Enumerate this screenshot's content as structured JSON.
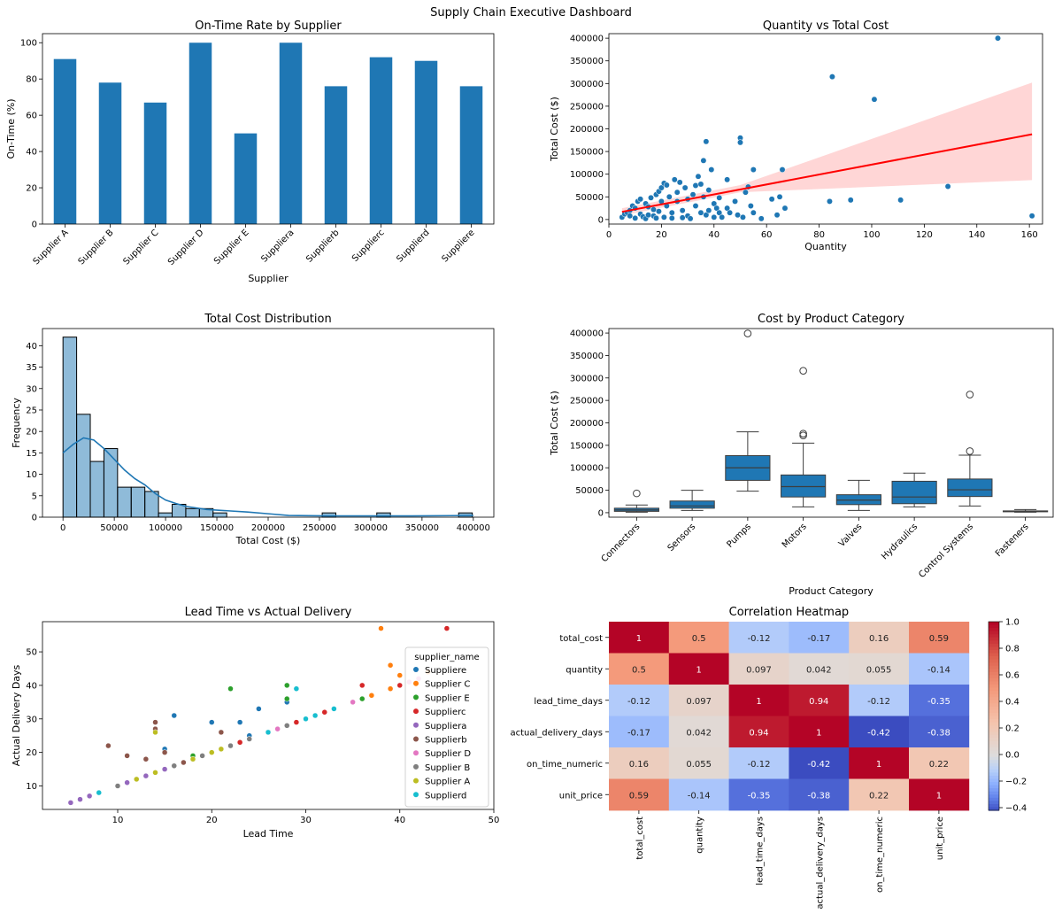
{
  "page": {
    "title": "Supply Chain Executive Dashboard"
  },
  "chart_data": [
    {
      "id": "ontime",
      "type": "bar",
      "title": "On-Time Rate by Supplier",
      "xlabel": "Supplier",
      "ylabel": "On-Time (%)",
      "categories": [
        "Supplier A",
        "Supplier B",
        "Supplier C",
        "Supplier D",
        "Supplier E",
        "Suppliera",
        "Supplierb",
        "Supplierc",
        "Supplierd",
        "Suppliere"
      ],
      "values": [
        91,
        78,
        67,
        100,
        50,
        100,
        76,
        92,
        90,
        76
      ],
      "ylim": [
        0,
        105
      ],
      "yticks": [
        0,
        20,
        40,
        60,
        80,
        100
      ],
      "color": "#1f77b4"
    },
    {
      "id": "qtycost",
      "type": "scatter",
      "title": "Quantity vs Total Cost",
      "xlabel": "Quantity",
      "ylabel": "Total Cost ($)",
      "xlim": [
        0,
        165
      ],
      "ylim": [
        -10000,
        410000
      ],
      "xticks": [
        0,
        20,
        40,
        60,
        80,
        100,
        120,
        140,
        160
      ],
      "yticks": [
        0,
        50000,
        100000,
        150000,
        200000,
        250000,
        300000,
        350000,
        400000
      ],
      "points": [
        [
          5,
          5000
        ],
        [
          6,
          12000
        ],
        [
          7,
          15000
        ],
        [
          8,
          20000
        ],
        [
          8,
          8000
        ],
        [
          9,
          30000
        ],
        [
          10,
          25000
        ],
        [
          10,
          3000
        ],
        [
          11,
          40000
        ],
        [
          12,
          45000
        ],
        [
          12,
          12000
        ],
        [
          13,
          6000
        ],
        [
          14,
          2000
        ],
        [
          14,
          35000
        ],
        [
          15,
          28000
        ],
        [
          15,
          10000
        ],
        [
          16,
          48000
        ],
        [
          17,
          8000
        ],
        [
          17,
          22000
        ],
        [
          18,
          55000
        ],
        [
          18,
          3000
        ],
        [
          19,
          62000
        ],
        [
          19,
          18000
        ],
        [
          20,
          70000
        ],
        [
          20,
          40000
        ],
        [
          21,
          80000
        ],
        [
          21,
          5000
        ],
        [
          22,
          30000
        ],
        [
          22,
          76000
        ],
        [
          23,
          50000
        ],
        [
          24,
          15000
        ],
        [
          24,
          3000
        ],
        [
          25,
          88000
        ],
        [
          26,
          60000
        ],
        [
          26,
          40000
        ],
        [
          27,
          82000
        ],
        [
          28,
          20000
        ],
        [
          28,
          4000
        ],
        [
          29,
          70000
        ],
        [
          30,
          45000
        ],
        [
          30,
          8000
        ],
        [
          31,
          2000
        ],
        [
          32,
          55000
        ],
        [
          33,
          75000
        ],
        [
          33,
          30000
        ],
        [
          34,
          95000
        ],
        [
          35,
          78000
        ],
        [
          35,
          15000
        ],
        [
          36,
          130000
        ],
        [
          36,
          50000
        ],
        [
          37,
          10000
        ],
        [
          37,
          172000
        ],
        [
          38,
          20000
        ],
        [
          38,
          65000
        ],
        [
          39,
          110000
        ],
        [
          40,
          35000
        ],
        [
          40,
          5000
        ],
        [
          41,
          25000
        ],
        [
          42,
          48000
        ],
        [
          42,
          15000
        ],
        [
          43,
          5000
        ],
        [
          45,
          88000
        ],
        [
          45,
          25000
        ],
        [
          46,
          15000
        ],
        [
          48,
          40000
        ],
        [
          49,
          10000
        ],
        [
          50,
          180000
        ],
        [
          50,
          170000
        ],
        [
          51,
          5000
        ],
        [
          52,
          60000
        ],
        [
          53,
          72000
        ],
        [
          54,
          30000
        ],
        [
          55,
          110000
        ],
        [
          55,
          15000
        ],
        [
          58,
          2000
        ],
        [
          62,
          45000
        ],
        [
          64,
          10000
        ],
        [
          65,
          50000
        ],
        [
          66,
          110000
        ],
        [
          67,
          25000
        ],
        [
          84,
          40000
        ],
        [
          85,
          315000
        ],
        [
          92,
          43000
        ],
        [
          101,
          265000
        ],
        [
          111,
          43000
        ],
        [
          129,
          73000
        ],
        [
          148,
          400000
        ],
        [
          161,
          8000
        ]
      ],
      "regression": {
        "x0": 5,
        "y0": 17000,
        "x1": 161,
        "y1": 188000,
        "ci_lower_end": 87000,
        "ci_upper_end": 302000
      },
      "color": "#1f77b4",
      "line_color": "#ff0000"
    },
    {
      "id": "costdist",
      "type": "bar",
      "subtype": "histogram",
      "title": "Total Cost Distribution",
      "xlabel": "Total Cost ($)",
      "ylabel": "Frequency",
      "bin_start": 0,
      "bin_width": 13300,
      "counts": [
        42,
        24,
        13,
        16,
        7,
        7,
        6,
        1,
        3,
        2,
        2,
        1,
        0,
        0,
        0,
        0,
        0,
        0,
        0,
        1,
        0,
        0,
        0,
        1,
        0,
        0,
        0,
        0,
        0,
        1
      ],
      "xlim": [
        -20000,
        420000
      ],
      "ylim": [
        0,
        44
      ],
      "xticks": [
        0,
        50000,
        100000,
        150000,
        200000,
        250000,
        300000,
        350000,
        400000
      ],
      "yticks": [
        0,
        5,
        10,
        15,
        20,
        25,
        30,
        35,
        40
      ],
      "kde": [
        [
          0,
          15
        ],
        [
          10000,
          17
        ],
        [
          20000,
          18.5
        ],
        [
          30000,
          18
        ],
        [
          40000,
          16
        ],
        [
          50000,
          13.5
        ],
        [
          60000,
          11
        ],
        [
          70000,
          9
        ],
        [
          80000,
          7.5
        ],
        [
          90000,
          5.5
        ],
        [
          100000,
          4
        ],
        [
          110000,
          3.2
        ],
        [
          120000,
          2.5
        ],
        [
          140000,
          1.8
        ],
        [
          160000,
          1.5
        ],
        [
          180000,
          1.2
        ],
        [
          200000,
          0.8
        ],
        [
          220000,
          0.4
        ],
        [
          260000,
          0.3
        ],
        [
          300000,
          0.3
        ],
        [
          340000,
          0.3
        ],
        [
          400000,
          0.4
        ]
      ],
      "color": "#1f77b4"
    },
    {
      "id": "catbox",
      "type": "boxplot",
      "title": "Cost by Product Category",
      "xlabel": "Product Category",
      "ylabel": "Total Cost ($)",
      "ylim": [
        -10000,
        410000
      ],
      "yticks": [
        0,
        50000,
        100000,
        150000,
        200000,
        250000,
        300000,
        350000,
        400000
      ],
      "categories": [
        "Connectors",
        "Sensors",
        "Pumps",
        "Motors",
        "Valves",
        "Hydraulics",
        "Control Systems",
        "Fasteners"
      ],
      "boxes": [
        {
          "min": 1000,
          "q1": 3000,
          "median": 6000,
          "q3": 10000,
          "max": 17000,
          "outliers": [
            43000
          ]
        },
        {
          "min": 5000,
          "q1": 10000,
          "median": 15000,
          "q3": 26000,
          "max": 50000,
          "outliers": []
        },
        {
          "min": 48000,
          "q1": 72000,
          "median": 100000,
          "q3": 127000,
          "max": 180000,
          "outliers": [
            399000
          ]
        },
        {
          "min": 13000,
          "q1": 35000,
          "median": 58000,
          "q3": 84000,
          "max": 155000,
          "outliers": [
            172000,
            176000,
            316000
          ]
        },
        {
          "min": 5000,
          "q1": 18000,
          "median": 28000,
          "q3": 40000,
          "max": 72000,
          "outliers": []
        },
        {
          "min": 13000,
          "q1": 20000,
          "median": 35000,
          "q3": 70000,
          "max": 88000,
          "outliers": []
        },
        {
          "min": 15000,
          "q1": 36000,
          "median": 51000,
          "q3": 75000,
          "max": 128000,
          "outliers": [
            137000,
            263000
          ]
        },
        {
          "min": 1000,
          "q1": 2000,
          "median": 3000,
          "q3": 4000,
          "max": 7000,
          "outliers": []
        }
      ],
      "color": "#1f77b4"
    },
    {
      "id": "leadtime",
      "type": "scatter",
      "title": "Lead Time vs Actual Delivery",
      "xlabel": "Lead Time",
      "ylabel": "Actual Delivery Days",
      "xlim": [
        2,
        50
      ],
      "ylim": [
        3,
        59
      ],
      "xticks": [
        10,
        20,
        30,
        40,
        50
      ],
      "yticks": [
        10,
        20,
        30,
        40,
        50
      ],
      "legend_title": "supplier_name",
      "legend_position": "upper right",
      "series": [
        {
          "name": "Suppliere",
          "color": "#1f77b4",
          "points": [
            [
              15,
              21
            ],
            [
              16,
              31
            ],
            [
              20,
              29
            ],
            [
              23,
              29
            ],
            [
              25,
              33
            ],
            [
              28,
              35
            ],
            [
              24,
              25
            ]
          ]
        },
        {
          "name": "Supplier C",
          "color": "#ff7f0e",
          "points": [
            [
              38,
              57
            ],
            [
              39,
              46
            ],
            [
              39,
              39
            ],
            [
              37,
              37
            ],
            [
              40,
              43
            ],
            [
              43,
              44
            ]
          ]
        },
        {
          "name": "Supplier E",
          "color": "#2ca02c",
          "points": [
            [
              22,
              39
            ],
            [
              28,
              40
            ],
            [
              28,
              36
            ],
            [
              36,
              36
            ],
            [
              18,
              19
            ]
          ]
        },
        {
          "name": "Supplierc",
          "color": "#d62728",
          "points": [
            [
              45,
              57
            ],
            [
              40,
              40
            ],
            [
              36,
              40
            ],
            [
              32,
              32
            ],
            [
              29,
              29
            ],
            [
              26,
              26
            ],
            [
              23,
              23
            ]
          ]
        },
        {
          "name": "Suppliera",
          "color": "#9467bd",
          "points": [
            [
              5,
              5
            ],
            [
              6,
              6
            ],
            [
              7,
              7
            ],
            [
              11,
              11
            ],
            [
              13,
              13
            ],
            [
              15,
              15
            ]
          ]
        },
        {
          "name": "Supplierb",
          "color": "#8c564b",
          "points": [
            [
              9,
              22
            ],
            [
              11,
              19
            ],
            [
              13,
              18
            ],
            [
              14,
              29
            ],
            [
              14,
              27
            ],
            [
              15,
              20
            ],
            [
              21,
              26
            ],
            [
              17,
              17
            ]
          ]
        },
        {
          "name": "Supplier D",
          "color": "#e377c2",
          "points": [
            [
              27,
              27
            ],
            [
              28,
              28
            ],
            [
              35,
              35
            ],
            [
              41,
              41
            ],
            [
              42,
              42
            ]
          ]
        },
        {
          "name": "Supplier B",
          "color": "#7f7f7f",
          "points": [
            [
              10,
              10
            ],
            [
              16,
              16
            ],
            [
              19,
              19
            ],
            [
              22,
              22
            ],
            [
              24,
              24
            ],
            [
              28,
              28
            ]
          ]
        },
        {
          "name": "Supplier A",
          "color": "#bcbd22",
          "points": [
            [
              12,
              12
            ],
            [
              14,
              26
            ],
            [
              14,
              14
            ],
            [
              18,
              18
            ],
            [
              20,
              20
            ],
            [
              21,
              21
            ]
          ]
        },
        {
          "name": "Supplierd",
          "color": "#17becf",
          "points": [
            [
              8,
              8
            ],
            [
              29,
              39
            ],
            [
              33,
              33
            ],
            [
              26,
              26
            ],
            [
              30,
              30
            ],
            [
              31,
              31
            ]
          ]
        }
      ]
    },
    {
      "id": "corr",
      "type": "heatmap",
      "title": "Correlation Heatmap",
      "labels": [
        "total_cost",
        "quantity",
        "lead_time_days",
        "actual_delivery_days",
        "on_time_numeric",
        "unit_price"
      ],
      "matrix": [
        [
          1,
          0.5,
          -0.12,
          -0.17,
          0.16,
          0.59
        ],
        [
          0.5,
          1,
          0.097,
          0.042,
          0.055,
          -0.14
        ],
        [
          -0.12,
          0.097,
          1,
          0.94,
          -0.12,
          -0.35
        ],
        [
          -0.17,
          0.042,
          0.94,
          1,
          -0.42,
          -0.38
        ],
        [
          0.16,
          0.055,
          -0.12,
          -0.42,
          1,
          0.22
        ],
        [
          0.59,
          -0.14,
          -0.35,
          -0.38,
          0.22,
          1
        ]
      ],
      "colorbar_range": [
        -0.42,
        1.0
      ],
      "colorbar_ticks": [
        -0.4,
        -0.2,
        0.0,
        0.2,
        0.4,
        0.6,
        0.8,
        1.0
      ],
      "colorbar_tick_labels": [
        "−0.4",
        "−0.2",
        "0.0",
        "0.2",
        "0.4",
        "0.6",
        "0.8",
        "1.0"
      ],
      "colormap": "coolwarm"
    }
  ]
}
